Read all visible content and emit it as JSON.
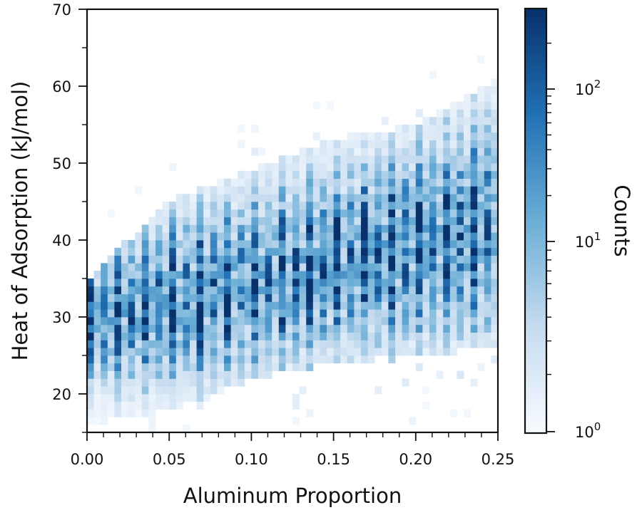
{
  "chart_data": {
    "type": "heatmap",
    "xlabel": "Aluminum Proportion",
    "ylabel": "Heat of Adsorption (kJ/mol)",
    "colorbar_label": "Counts",
    "colorbar_scale": "log",
    "colorbar_range": [
      1,
      300
    ],
    "colormap": [
      "#f7fbff",
      "#c6dbef",
      "#6baed6",
      "#2171b5",
      "#08306b"
    ],
    "xlim": [
      0.0,
      0.25
    ],
    "ylim": [
      15,
      70
    ],
    "x_ticks": [
      "0.00",
      "0.05",
      "0.10",
      "0.15",
      "0.20",
      "0.25"
    ],
    "y_ticks": [
      "20",
      "30",
      "40",
      "50",
      "60",
      "70"
    ],
    "colorbar_ticks": [
      {
        "base": "10",
        "exp": "0",
        "value": 1
      },
      {
        "base": "10",
        "exp": "1",
        "value": 10
      },
      {
        "base": "10",
        "exp": "2",
        "value": 100
      }
    ],
    "grid": false,
    "density_summary": {
      "x_columns_start": 0.0,
      "x_columns_step": 0.00417,
      "approx_peak_y_at_x": [
        {
          "x": 0.0,
          "y": 29.5
        },
        {
          "x": 0.05,
          "y": 32
        },
        {
          "x": 0.1,
          "y": 34.5
        },
        {
          "x": 0.15,
          "y": 37
        },
        {
          "x": 0.2,
          "y": 39.5
        },
        {
          "x": 0.25,
          "y": 42
        }
      ],
      "approx_spread_y": [
        {
          "x": 0.0,
          "low": 17,
          "high": 34
        },
        {
          "x": 0.05,
          "low": 19,
          "high": 44
        },
        {
          "x": 0.1,
          "low": 23,
          "high": 48
        },
        {
          "x": 0.15,
          "low": 25,
          "high": 52
        },
        {
          "x": 0.2,
          "low": 26,
          "high": 54
        },
        {
          "x": 0.25,
          "low": 27,
          "high": 60
        }
      ]
    }
  }
}
